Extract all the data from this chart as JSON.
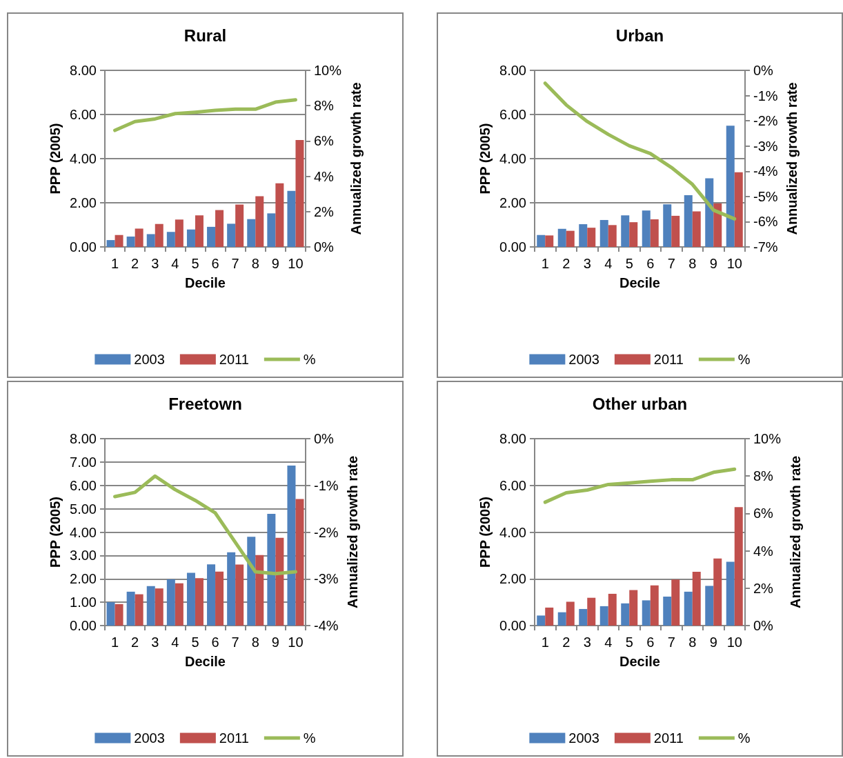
{
  "chart_data": [
    {
      "type": "bar",
      "title": "Rural",
      "xlabel": "Decile",
      "ylabel": "PPP (2005)",
      "y2label": "Annualized growth rate",
      "categories": [
        "1",
        "2",
        "3",
        "4",
        "5",
        "6",
        "7",
        "8",
        "9",
        "10"
      ],
      "series": [
        {
          "name": "2003",
          "color": "#4f81bd",
          "values": [
            0.31,
            0.47,
            0.58,
            0.68,
            0.79,
            0.91,
            1.05,
            1.26,
            1.52,
            2.54
          ]
        },
        {
          "name": "2011",
          "color": "#c0504d",
          "values": [
            0.54,
            0.83,
            1.04,
            1.24,
            1.43,
            1.67,
            1.92,
            2.3,
            2.88,
            4.84
          ]
        },
        {
          "name": "%",
          "type": "line",
          "axis": "y2",
          "color": "#9bbb59",
          "values": [
            6.6,
            7.1,
            7.25,
            7.55,
            7.63,
            7.73,
            7.8,
            7.8,
            8.2,
            8.33
          ]
        }
      ],
      "ylim": [
        0,
        8
      ],
      "yticks": [
        {
          "value": 0,
          "label": "0.00"
        },
        {
          "value": 2,
          "label": "2.00"
        },
        {
          "value": 4,
          "label": "4.00"
        },
        {
          "value": 6,
          "label": "6.00"
        },
        {
          "value": 8,
          "label": "8.00"
        }
      ],
      "y2lim": [
        0,
        10
      ],
      "y2ticks": [
        {
          "value": 0,
          "label": "0%"
        },
        {
          "value": 2,
          "label": "2%"
        },
        {
          "value": 4,
          "label": "4%"
        },
        {
          "value": 6,
          "label": "6%"
        },
        {
          "value": 8,
          "label": "8%"
        },
        {
          "value": 10,
          "label": "10%"
        }
      ],
      "grid": "y",
      "legend": "bottom",
      "marker": "none",
      "line_style": "solid"
    },
    {
      "type": "bar",
      "title": "Urban",
      "xlabel": "Decile",
      "ylabel": "PPP (2005)",
      "y2label": "Annualized growth rate",
      "categories": [
        "1",
        "2",
        "3",
        "4",
        "5",
        "6",
        "7",
        "8",
        "9",
        "10"
      ],
      "series": [
        {
          "name": "2003",
          "color": "#4f81bd",
          "values": [
            0.54,
            0.82,
            1.03,
            1.22,
            1.43,
            1.65,
            1.93,
            2.34,
            3.11,
            5.49
          ]
        },
        {
          "name": "2011",
          "color": "#c0504d",
          "values": [
            0.52,
            0.73,
            0.87,
            0.99,
            1.12,
            1.25,
            1.41,
            1.61,
            1.97,
            3.38
          ]
        },
        {
          "name": "%",
          "type": "line",
          "axis": "y2",
          "color": "#9bbb59",
          "values": [
            -0.51,
            -1.37,
            -2.03,
            -2.54,
            -2.99,
            -3.3,
            -3.85,
            -4.52,
            -5.54,
            -5.89
          ]
        }
      ],
      "ylim": [
        0,
        8
      ],
      "yticks": [
        {
          "value": 0,
          "label": "0.00"
        },
        {
          "value": 2,
          "label": "2.00"
        },
        {
          "value": 4,
          "label": "4.00"
        },
        {
          "value": 6,
          "label": "6.00"
        },
        {
          "value": 8,
          "label": "8.00"
        }
      ],
      "y2lim": [
        -7,
        0
      ],
      "y2ticks": [
        {
          "value": -7,
          "label": "-7%"
        },
        {
          "value": -6,
          "label": "-6%"
        },
        {
          "value": -5,
          "label": "-5%"
        },
        {
          "value": -4,
          "label": "-4%"
        },
        {
          "value": -3,
          "label": "-3%"
        },
        {
          "value": -2,
          "label": "-2%"
        },
        {
          "value": -1,
          "label": "-1%"
        },
        {
          "value": 0,
          "label": "0%"
        }
      ],
      "grid": "y",
      "legend": "bottom",
      "marker": "none",
      "line_style": "solid"
    },
    {
      "type": "bar",
      "title": "Freetown",
      "xlabel": "Decile",
      "ylabel": "PPP (2005)",
      "y2label": "Annualized growth rate",
      "categories": [
        "1",
        "2",
        "3",
        "4",
        "5",
        "6",
        "7",
        "8",
        "9",
        "10"
      ],
      "series": [
        {
          "name": "2003",
          "color": "#4f81bd",
          "values": [
            1.0,
            1.45,
            1.69,
            1.98,
            2.26,
            2.62,
            3.14,
            3.8,
            4.78,
            6.85
          ]
        },
        {
          "name": "2011",
          "color": "#c0504d",
          "values": [
            0.92,
            1.34,
            1.59,
            1.81,
            2.03,
            2.31,
            2.61,
            3.02,
            3.76,
            5.42
          ]
        },
        {
          "name": "%",
          "type": "line",
          "axis": "y2",
          "color": "#9bbb59",
          "values": [
            -1.24,
            -1.15,
            -0.8,
            -1.09,
            -1.32,
            -1.59,
            -2.22,
            -2.85,
            -2.89,
            -2.85
          ]
        }
      ],
      "ylim": [
        0,
        8
      ],
      "yticks": [
        {
          "value": 0,
          "label": "0.00"
        },
        {
          "value": 1,
          "label": "1.00"
        },
        {
          "value": 2,
          "label": "2.00"
        },
        {
          "value": 3,
          "label": "3.00"
        },
        {
          "value": 4,
          "label": "4.00"
        },
        {
          "value": 5,
          "label": "5.00"
        },
        {
          "value": 6,
          "label": "6.00"
        },
        {
          "value": 7,
          "label": "7.00"
        },
        {
          "value": 8,
          "label": "8.00"
        }
      ],
      "y2lim": [
        -4,
        0
      ],
      "y2ticks": [
        {
          "value": -4,
          "label": "-4%"
        },
        {
          "value": -3,
          "label": "-3%"
        },
        {
          "value": -2,
          "label": "-2%"
        },
        {
          "value": -1,
          "label": "-1%"
        },
        {
          "value": 0,
          "label": "0%"
        }
      ],
      "grid": "y",
      "legend": "bottom",
      "marker": "none",
      "line_style": "solid"
    },
    {
      "type": "bar",
      "title": "Other urban",
      "xlabel": "Decile",
      "ylabel": "PPP (2005)",
      "y2label": "Annualized growth rate",
      "categories": [
        "1",
        "2",
        "3",
        "4",
        "5",
        "6",
        "7",
        "8",
        "9",
        "10"
      ],
      "series": [
        {
          "name": "2003",
          "color": "#4f81bd",
          "values": [
            0.43,
            0.57,
            0.71,
            0.83,
            0.95,
            1.08,
            1.24,
            1.45,
            1.7,
            2.73
          ]
        },
        {
          "name": "2011",
          "color": "#c0504d",
          "values": [
            0.77,
            1.02,
            1.19,
            1.36,
            1.52,
            1.72,
            1.97,
            2.3,
            2.87,
            5.07
          ]
        },
        {
          "name": "%",
          "type": "line",
          "axis": "y2",
          "color": "#9bbb59",
          "values": [
            6.6,
            7.1,
            7.25,
            7.55,
            7.63,
            7.72,
            7.8,
            7.8,
            8.2,
            8.37
          ]
        }
      ],
      "ylim": [
        0,
        8
      ],
      "yticks": [
        {
          "value": 0,
          "label": "0.00"
        },
        {
          "value": 2,
          "label": "2.00"
        },
        {
          "value": 4,
          "label": "4.00"
        },
        {
          "value": 6,
          "label": "6.00"
        },
        {
          "value": 8,
          "label": "8.00"
        }
      ],
      "y2lim": [
        0,
        10
      ],
      "y2ticks": [
        {
          "value": 0,
          "label": "0%"
        },
        {
          "value": 2,
          "label": "2%"
        },
        {
          "value": 4,
          "label": "4%"
        },
        {
          "value": 6,
          "label": "6%"
        },
        {
          "value": 8,
          "label": "8%"
        },
        {
          "value": 10,
          "label": "10%"
        }
      ],
      "grid": "y",
      "legend": "bottom",
      "marker": "none",
      "line_style": "solid"
    }
  ]
}
